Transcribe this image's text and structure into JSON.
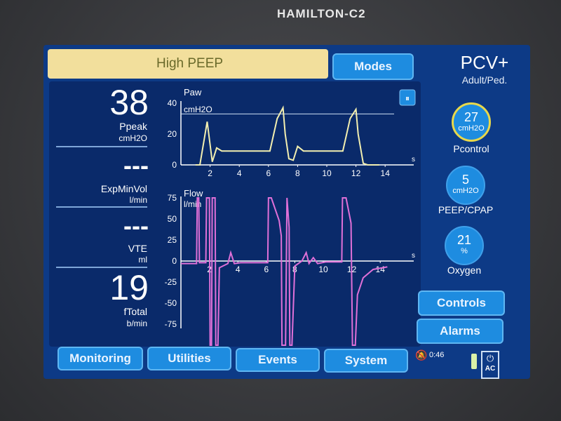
{
  "device": {
    "brand": "HAMILTON-C2"
  },
  "alarm": {
    "message": "High PEEP",
    "color": "#f2df9c"
  },
  "header": {
    "modes_label": "Modes",
    "mode": "PCV+",
    "patient": "Adult/Ped."
  },
  "monitoring": [
    {
      "value": "38",
      "label": "Ppeak",
      "unit": "cmH2O"
    },
    {
      "value": "---",
      "label": "ExpMinVol",
      "unit": "l/min"
    },
    {
      "value": "---",
      "label": "VTE",
      "unit": "ml"
    },
    {
      "value": "19",
      "label": "fTotal",
      "unit": "b/min"
    }
  ],
  "controls": [
    {
      "value": "27",
      "unit": "cmH2O",
      "label": "Pcontrol",
      "active": true
    },
    {
      "value": "5",
      "unit": "cmH2O",
      "label": "PEEP/CPAP"
    },
    {
      "value": "21",
      "unit": "%",
      "label": "Oxygen"
    }
  ],
  "side_buttons": {
    "controls": "Controls",
    "alarms": "Alarms"
  },
  "tabs": [
    "Monitoring",
    "Utilities",
    "Events",
    "System"
  ],
  "status": {
    "alarm_silence_time": "0:46",
    "power": "AC",
    "icons": [
      "alarm-silence-icon",
      "battery-icon",
      "ac-plug-icon",
      "freeze-icon"
    ]
  },
  "colors": {
    "pressure": "#f3efb0",
    "flow": "#e070d8",
    "screen": "#0d3a86",
    "button": "#1e8ce0"
  },
  "chart_data": [
    {
      "type": "line",
      "title": "Paw",
      "ylabel": "cmH2O",
      "xlabel": "s",
      "ylim": [
        0,
        40
      ],
      "xlim": [
        0,
        15
      ],
      "yticks": [
        "0",
        "20",
        "40"
      ],
      "xticks": [
        "2",
        "4",
        "6",
        "8",
        "10",
        "12",
        "14"
      ],
      "limit_line": 33,
      "points": [
        [
          1.0,
          0
        ],
        [
          1.3,
          0
        ],
        [
          1.8,
          28
        ],
        [
          2.15,
          2
        ],
        [
          2.45,
          11
        ],
        [
          2.8,
          9
        ],
        [
          3.3,
          9
        ],
        [
          6.1,
          9
        ],
        [
          6.6,
          30
        ],
        [
          7.0,
          37
        ],
        [
          7.15,
          20
        ],
        [
          7.4,
          4
        ],
        [
          7.7,
          3
        ],
        [
          8.0,
          12
        ],
        [
          8.4,
          9
        ],
        [
          11.1,
          9
        ],
        [
          11.6,
          30
        ],
        [
          12.0,
          36
        ],
        [
          12.15,
          20
        ],
        [
          12.5,
          1
        ],
        [
          12.8,
          0
        ],
        [
          13.6,
          0
        ]
      ]
    },
    {
      "type": "line",
      "title": "Flow",
      "ylabel": "l/min",
      "xlabel": "s",
      "ylim": [
        -75,
        75
      ],
      "xlim": [
        0,
        15
      ],
      "yticks": [
        "75",
        "50",
        "25",
        "0",
        "-25",
        "-50",
        "-75"
      ],
      "xticks": [
        "2",
        "4",
        "6",
        "8",
        "10",
        "12",
        "14"
      ],
      "points": [
        [
          0,
          -3
        ],
        [
          1.1,
          -3
        ],
        [
          1.15,
          75
        ],
        [
          1.25,
          75
        ],
        [
          1.3,
          -2
        ],
        [
          1.75,
          -2
        ],
        [
          1.8,
          75
        ],
        [
          2.0,
          75
        ],
        [
          2.05,
          -100
        ],
        [
          2.15,
          -100
        ],
        [
          2.2,
          75
        ],
        [
          2.4,
          75
        ],
        [
          2.45,
          -100
        ],
        [
          2.6,
          -100
        ],
        [
          2.7,
          -8
        ],
        [
          3.3,
          -3
        ],
        [
          3.5,
          10
        ],
        [
          3.75,
          -3
        ],
        [
          4.2,
          -2
        ],
        [
          6.1,
          -2
        ],
        [
          6.15,
          75
        ],
        [
          6.35,
          75
        ],
        [
          6.9,
          48
        ],
        [
          7.05,
          30
        ],
        [
          7.1,
          -100
        ],
        [
          7.35,
          -100
        ],
        [
          7.45,
          75
        ],
        [
          7.6,
          40
        ],
        [
          7.65,
          -100
        ],
        [
          7.8,
          -100
        ],
        [
          8.0,
          -6
        ],
        [
          8.5,
          0
        ],
        [
          8.8,
          10
        ],
        [
          9.0,
          -3
        ],
        [
          9.3,
          4
        ],
        [
          9.6,
          -3
        ],
        [
          10.2,
          -1
        ],
        [
          11.3,
          -1
        ],
        [
          11.35,
          75
        ],
        [
          11.6,
          75
        ],
        [
          11.95,
          45
        ],
        [
          12.05,
          -100
        ],
        [
          12.25,
          -100
        ],
        [
          12.4,
          -40
        ],
        [
          12.8,
          -20
        ],
        [
          13.5,
          -10
        ],
        [
          14.5,
          -7
        ]
      ]
    }
  ]
}
